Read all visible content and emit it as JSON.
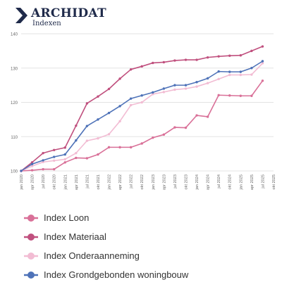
{
  "logo": {
    "brand": "ARCHIDAT",
    "sub": "Indexen"
  },
  "chart_data": {
    "type": "line",
    "title": "",
    "xlabel": "",
    "ylabel": "",
    "ylim": [
      100,
      140
    ],
    "yticks": [
      100,
      110,
      120,
      130,
      140
    ],
    "grid": true,
    "legend_position": "bottom",
    "categories": [
      "jan 2020",
      "apr 2020",
      "jul 2020",
      "okt 2020",
      "jan 2021",
      "apr 2021",
      "jul 2021",
      "okt 2021",
      "jan 2022",
      "apr 2022",
      "jul 2022",
      "okt 2022",
      "jan 2023",
      "apr 2023",
      "jul 2023",
      "okt 2023",
      "jan 2024",
      "apr 2024",
      "jul 2024",
      "okt 2024",
      "jan 2025",
      "apr 2025",
      "jul 2025",
      "okt 2025"
    ],
    "series": [
      {
        "name": "Index Loon",
        "color": "#d97098",
        "values": [
          100,
          100.2,
          100.5,
          100.5,
          102.5,
          103.8,
          103.7,
          104.8,
          106.9,
          106.9,
          106.9,
          108.0,
          109.7,
          110.6,
          112.7,
          112.6,
          116.2,
          115.8,
          122.1,
          122.0,
          121.9,
          121.9,
          126.3,
          null
        ]
      },
      {
        "name": "Index Materiaal",
        "color": "#c0507e",
        "values": [
          100,
          102.5,
          105.2,
          106.1,
          106.8,
          113.2,
          119.7,
          121.7,
          123.9,
          126.9,
          129.6,
          130.5,
          131.5,
          131.7,
          132.2,
          132.4,
          132.4,
          133.1,
          133.4,
          133.6,
          133.7,
          135.0,
          136.3,
          null
        ]
      },
      {
        "name": "Index Onderaanneming",
        "color": "#f2bcd3",
        "values": [
          100,
          101.4,
          102.6,
          103.0,
          103.4,
          105.2,
          108.8,
          109.5,
          110.7,
          114.5,
          119.2,
          120.0,
          122.4,
          123.0,
          123.7,
          124.0,
          124.6,
          125.6,
          126.8,
          128.0,
          128.0,
          128.1,
          131.4,
          null
        ]
      },
      {
        "name": "Index Grondgebonden woningbouw",
        "color": "#4e72b8",
        "values": [
          100,
          102.0,
          103.1,
          104.1,
          104.8,
          108.9,
          113.1,
          115.0,
          116.9,
          118.9,
          121.1,
          122.0,
          122.9,
          124.0,
          125.0,
          125.0,
          125.9,
          127.0,
          129.0,
          128.9,
          128.9,
          130.0,
          132.0,
          null
        ]
      }
    ]
  }
}
